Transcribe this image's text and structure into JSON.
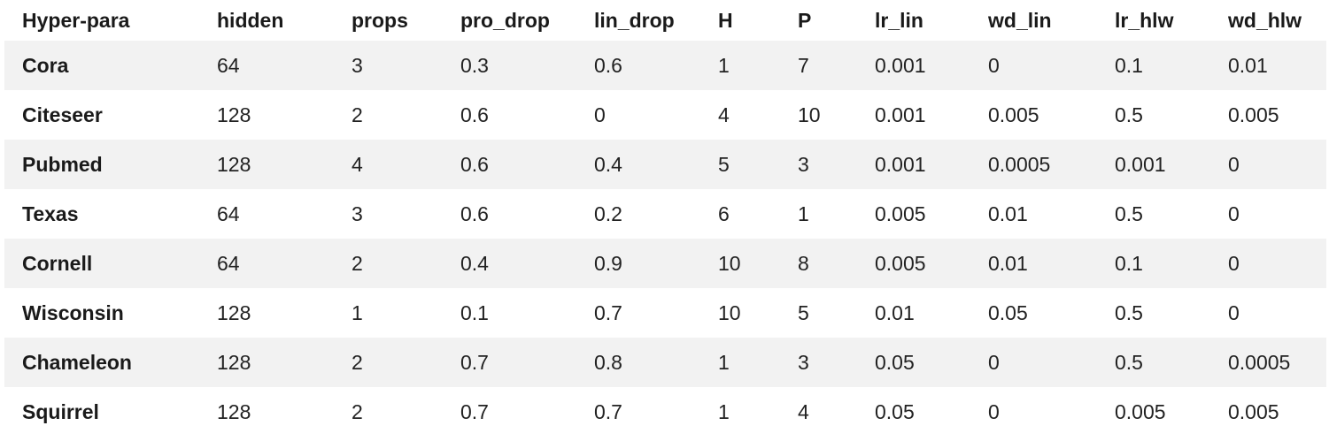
{
  "table": {
    "headers": [
      "Hyper-para",
      "hidden",
      "props",
      "pro_drop",
      "lin_drop",
      "H",
      "P",
      "lr_lin",
      "wd_lin",
      "lr_hlw",
      "wd_hlw"
    ],
    "rows": [
      [
        "Cora",
        "64",
        "3",
        "0.3",
        "0.6",
        "1",
        "7",
        "0.001",
        "0",
        "0.1",
        "0.01"
      ],
      [
        "Citeseer",
        "128",
        "2",
        "0.6",
        "0",
        "4",
        "10",
        "0.001",
        "0.005",
        "0.5",
        "0.005"
      ],
      [
        "Pubmed",
        "128",
        "4",
        "0.6",
        "0.4",
        "5",
        "3",
        "0.001",
        "0.0005",
        "0.001",
        "0"
      ],
      [
        "Texas",
        "64",
        "3",
        "0.6",
        "0.2",
        "6",
        "1",
        "0.005",
        "0.01",
        "0.5",
        "0"
      ],
      [
        "Cornell",
        "64",
        "2",
        "0.4",
        "0.9",
        "10",
        "8",
        "0.005",
        "0.01",
        "0.1",
        "0"
      ],
      [
        "Wisconsin",
        "128",
        "1",
        "0.1",
        "0.7",
        "10",
        "5",
        "0.01",
        "0.05",
        "0.5",
        "0"
      ],
      [
        "Chameleon",
        "128",
        "2",
        "0.7",
        "0.8",
        "1",
        "3",
        "0.05",
        "0",
        "0.5",
        "0.0005"
      ],
      [
        "Squirrel",
        "128",
        "2",
        "0.7",
        "0.7",
        "1",
        "4",
        "0.05",
        "0",
        "0.005",
        "0.005"
      ]
    ]
  }
}
